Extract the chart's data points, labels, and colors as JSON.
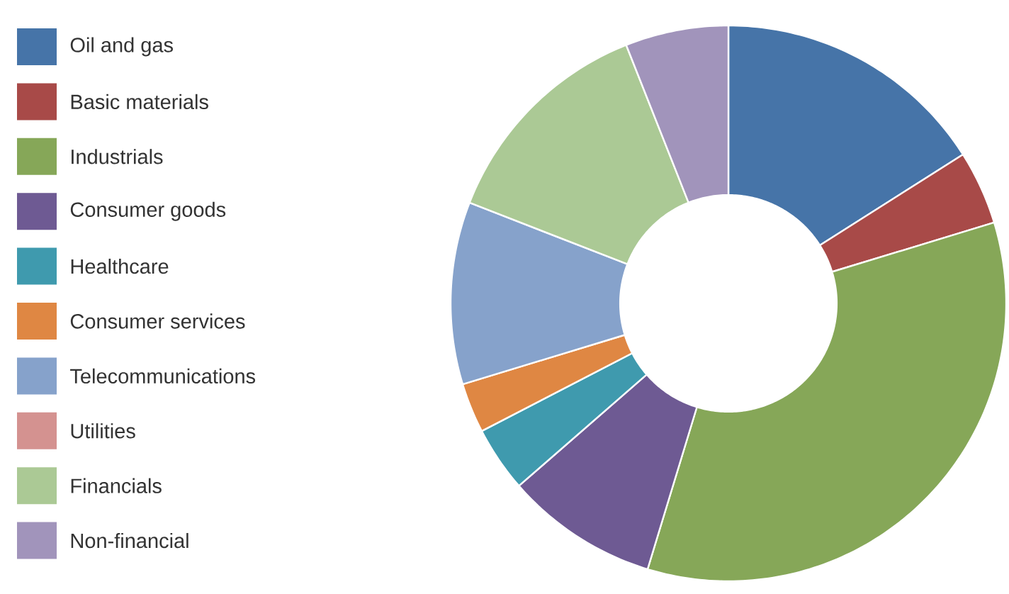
{
  "chart_data": {
    "type": "donut",
    "categories": [
      "Oil and gas",
      "Basic materials",
      "Industrials",
      "Consumer goods",
      "Healthcare",
      "Consumer services",
      "Telecommunications",
      "Utilities",
      "Financials",
      "Non-financial"
    ],
    "values": [
      16,
      4.3,
      34.4,
      8.9,
      3.8,
      2.9,
      10.6,
      0,
      13.1,
      6
    ],
    "colors": [
      "#4674a8",
      "#a84a48",
      "#86a758",
      "#6e5a93",
      "#3f9aae",
      "#df8743",
      "#86a2cb",
      "#d49290",
      "#abc995",
      "#a194bb"
    ],
    "legend": "left"
  }
}
